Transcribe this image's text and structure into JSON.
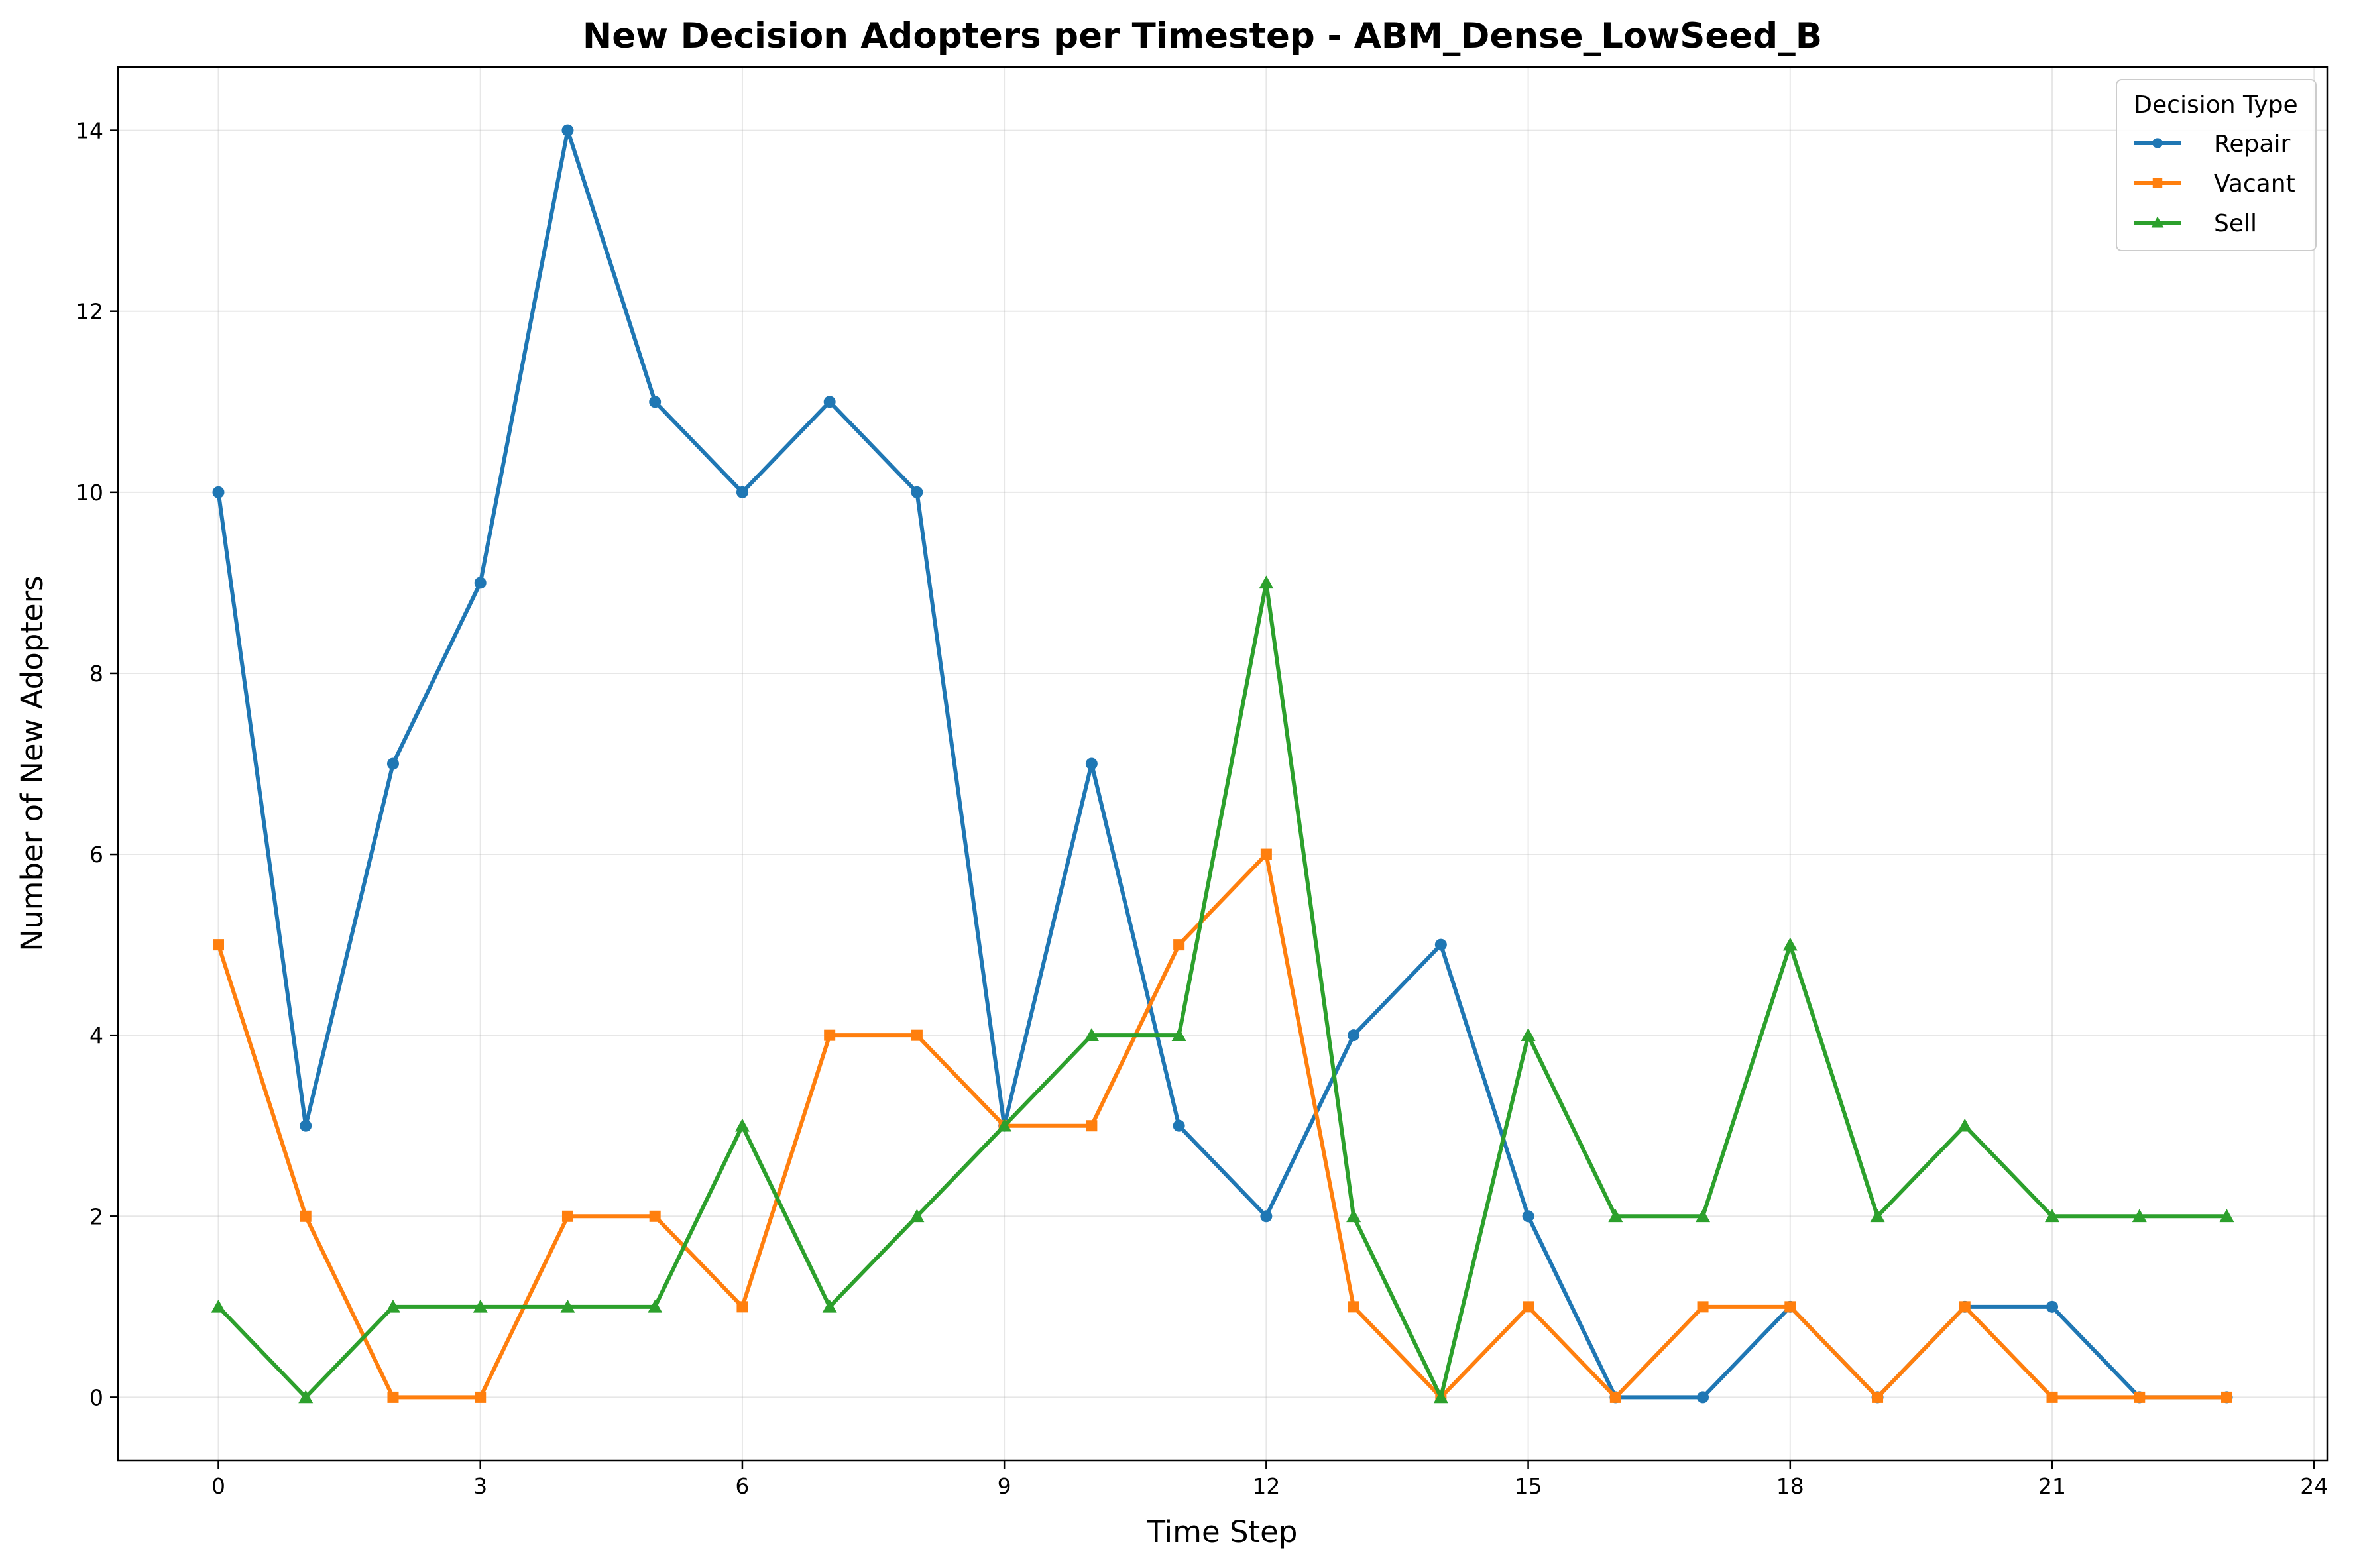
{
  "chart_data": {
    "type": "line",
    "title": "New Decision Adopters per Timestep - ABM_Dense_LowSeed_B",
    "xlabel": "Time Step",
    "ylabel": "Number of New Adopters",
    "x": [
      0,
      1,
      2,
      3,
      4,
      5,
      6,
      7,
      8,
      9,
      10,
      11,
      12,
      13,
      14,
      15,
      16,
      17,
      18,
      19,
      20,
      21,
      22,
      23
    ],
    "xlim": [
      -1.15,
      24.15
    ],
    "ylim": [
      -0.7,
      14.7
    ],
    "xticks": [
      0,
      3,
      6,
      9,
      12,
      15,
      18,
      21,
      24
    ],
    "yticks": [
      0,
      2,
      4,
      6,
      8,
      10,
      12,
      14
    ],
    "grid": true,
    "legend": {
      "title": "Decision Type",
      "position": "top-right"
    },
    "series": [
      {
        "name": "Repair",
        "color": "#1f77b4",
        "marker": "circle",
        "values": [
          10,
          3,
          7,
          9,
          14,
          11,
          10,
          11,
          10,
          3,
          7,
          3,
          2,
          4,
          5,
          2,
          0,
          0,
          1,
          0,
          1,
          1,
          0,
          0
        ]
      },
      {
        "name": "Vacant",
        "color": "#ff7f0e",
        "marker": "square",
        "values": [
          5,
          2,
          0,
          0,
          2,
          2,
          1,
          4,
          4,
          3,
          3,
          5,
          6,
          1,
          0,
          1,
          0,
          1,
          1,
          0,
          1,
          0,
          0,
          0
        ]
      },
      {
        "name": "Sell",
        "color": "#2ca02c",
        "marker": "triangle",
        "values": [
          1,
          0,
          1,
          1,
          1,
          1,
          3,
          1,
          2,
          3,
          4,
          4,
          9,
          2,
          0,
          4,
          2,
          2,
          5,
          2,
          3,
          2,
          2,
          2
        ]
      }
    ]
  }
}
